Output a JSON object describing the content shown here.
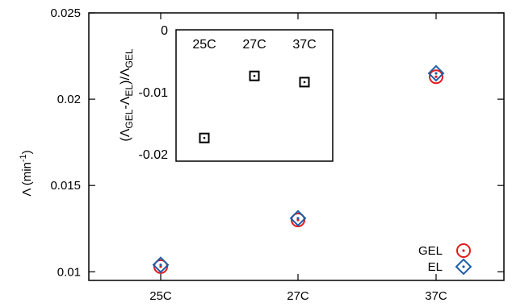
{
  "chart_data": [
    {
      "type": "scatter",
      "categories": [
        "25C",
        "27C",
        "37C"
      ],
      "ylabel_main": "Λ (min",
      "ylabel_sup": "-1",
      "ylabel_close": ")",
      "ylim": [
        0.0095,
        0.025
      ],
      "yticks": [
        0.01,
        0.015,
        0.02,
        0.025
      ],
      "ytick_labels": [
        "0.01",
        "0.015",
        "0.02",
        "0.025"
      ],
      "series": [
        {
          "name": "GEL",
          "marker": "circle",
          "color": "#e41a1c",
          "values": [
            0.0103,
            0.013,
            0.0213
          ]
        },
        {
          "name": "EL",
          "marker": "diamond",
          "color": "#1f5fa8",
          "values": [
            0.0104,
            0.0131,
            0.0215
          ]
        }
      ],
      "legend_position": "bottom-right",
      "grid": false
    },
    {
      "type": "scatter",
      "categories": [
        "25C",
        "27C",
        "37C"
      ],
      "ylabel_parts": [
        "(Λ",
        "GEL",
        "-Λ",
        "EL",
        ")/Λ",
        "GEL"
      ],
      "ylim": [
        -0.02,
        0
      ],
      "yticks": [
        0,
        -0.01,
        -0.02
      ],
      "ytick_labels": [
        "0",
        "-0.01",
        "-0.02"
      ],
      "series": [
        {
          "marker": "square",
          "color": "#000000",
          "values": [
            -0.0173,
            -0.0073,
            -0.0083
          ]
        }
      ],
      "grid": false
    }
  ]
}
